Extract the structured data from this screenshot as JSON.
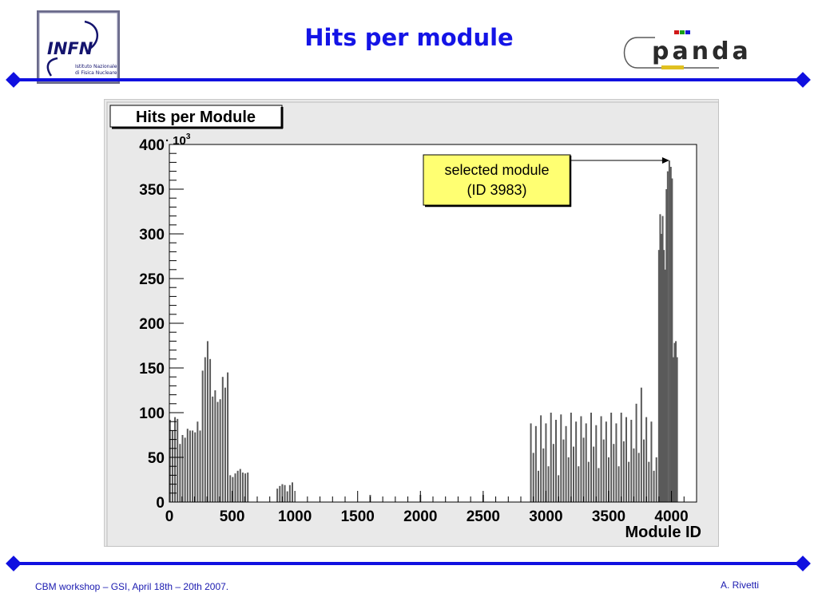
{
  "slide": {
    "title": "Hits per module",
    "footer_left": "CBM workshop – GSI, April 18th – 20th 2007.",
    "footer_right": "A. Rivetti"
  },
  "logos": {
    "infn": {
      "letters": "INFN",
      "line1": "Istituto Nazionale",
      "line2": "di Fisica Nucleare"
    },
    "panda": {
      "text": "panda"
    }
  },
  "chart_data": {
    "type": "bar",
    "title": "Hits  per  Module",
    "xlabel": "Module  ID",
    "ylabel": "",
    "y_multiplier_label": "· 10",
    "y_multiplier_exp": "3",
    "xlim": [
      0,
      4200
    ],
    "ylim": [
      0,
      400
    ],
    "x_ticks": [
      0,
      500,
      1000,
      1500,
      2000,
      2500,
      3000,
      3500,
      4000
    ],
    "y_ticks": [
      0,
      50,
      100,
      150,
      200,
      250,
      300,
      350,
      400
    ],
    "annotation": {
      "line1": "selected module",
      "line2": "(ID 3983)",
      "target_x": 3983,
      "target_y": 382
    },
    "bars": [
      [
        5,
        92
      ],
      [
        25,
        80
      ],
      [
        45,
        95
      ],
      [
        65,
        93
      ],
      [
        85,
        65
      ],
      [
        105,
        75
      ],
      [
        125,
        72
      ],
      [
        145,
        82
      ],
      [
        165,
        80
      ],
      [
        185,
        80
      ],
      [
        205,
        78
      ],
      [
        225,
        90
      ],
      [
        245,
        80
      ],
      [
        265,
        147
      ],
      [
        285,
        162
      ],
      [
        305,
        180
      ],
      [
        325,
        160
      ],
      [
        345,
        118
      ],
      [
        365,
        125
      ],
      [
        385,
        112
      ],
      [
        405,
        115
      ],
      [
        425,
        140
      ],
      [
        445,
        128
      ],
      [
        465,
        145
      ],
      [
        485,
        30
      ],
      [
        505,
        28
      ],
      [
        525,
        32
      ],
      [
        545,
        35
      ],
      [
        565,
        37
      ],
      [
        585,
        33
      ],
      [
        605,
        32
      ],
      [
        625,
        33
      ],
      [
        860,
        15
      ],
      [
        880,
        18
      ],
      [
        900,
        20
      ],
      [
        920,
        19
      ],
      [
        940,
        12
      ],
      [
        960,
        19
      ],
      [
        980,
        22
      ],
      [
        1600,
        8
      ],
      [
        2000,
        8
      ],
      [
        2500,
        8
      ],
      [
        2880,
        88
      ],
      [
        2900,
        55
      ],
      [
        2920,
        85
      ],
      [
        2940,
        35
      ],
      [
        2960,
        97
      ],
      [
        2980,
        60
      ],
      [
        3000,
        88
      ],
      [
        3020,
        40
      ],
      [
        3040,
        100
      ],
      [
        3060,
        65
      ],
      [
        3080,
        92
      ],
      [
        3100,
        30
      ],
      [
        3120,
        98
      ],
      [
        3140,
        70
      ],
      [
        3160,
        85
      ],
      [
        3180,
        50
      ],
      [
        3200,
        100
      ],
      [
        3220,
        62
      ],
      [
        3240,
        90
      ],
      [
        3260,
        40
      ],
      [
        3280,
        96
      ],
      [
        3300,
        72
      ],
      [
        3320,
        88
      ],
      [
        3340,
        45
      ],
      [
        3360,
        100
      ],
      [
        3380,
        62
      ],
      [
        3400,
        86
      ],
      [
        3420,
        38
      ],
      [
        3440,
        96
      ],
      [
        3460,
        70
      ],
      [
        3480,
        90
      ],
      [
        3500,
        50
      ],
      [
        3520,
        100
      ],
      [
        3540,
        65
      ],
      [
        3560,
        88
      ],
      [
        3580,
        40
      ],
      [
        3600,
        100
      ],
      [
        3620,
        68
      ],
      [
        3640,
        95
      ],
      [
        3660,
        45
      ],
      [
        3680,
        92
      ],
      [
        3700,
        60
      ],
      [
        3720,
        110
      ],
      [
        3740,
        55
      ],
      [
        3760,
        128
      ],
      [
        3780,
        70
      ],
      [
        3800,
        95
      ],
      [
        3820,
        45
      ],
      [
        3840,
        90
      ],
      [
        3860,
        35
      ],
      [
        3880,
        50
      ],
      [
        3900,
        282
      ],
      [
        3910,
        322
      ],
      [
        3920,
        300
      ],
      [
        3930,
        320
      ],
      [
        3940,
        282
      ],
      [
        3950,
        260
      ],
      [
        3960,
        350
      ],
      [
        3970,
        370
      ],
      [
        3983,
        382
      ],
      [
        3995,
        375
      ],
      [
        4005,
        362
      ],
      [
        4015,
        162
      ],
      [
        4025,
        178
      ],
      [
        4035,
        180
      ],
      [
        4045,
        162
      ]
    ]
  }
}
